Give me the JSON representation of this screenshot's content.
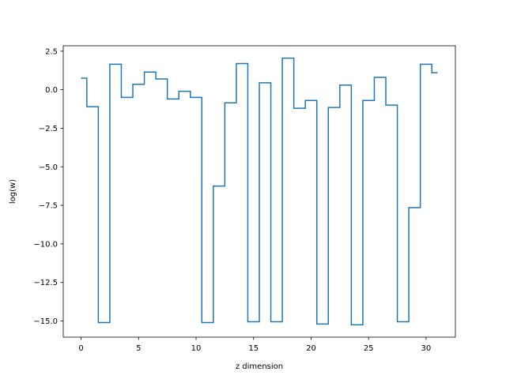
{
  "chart_data": {
    "type": "line",
    "drawstyle": "steps-mid",
    "title": "",
    "xlabel": "z dimension",
    "ylabel": "log(w)",
    "xlim": [
      -1.55,
      32.55
    ],
    "ylim": [
      -16.05,
      2.85
    ],
    "xticks": [
      0,
      5,
      10,
      15,
      20,
      25,
      30
    ],
    "xtick_labels": [
      "0",
      "5",
      "10",
      "15",
      "20",
      "25",
      "30"
    ],
    "yticks": [
      2.5,
      0.0,
      -2.5,
      -5.0,
      -7.5,
      -10.0,
      -12.5,
      -15.0
    ],
    "ytick_labels": [
      "2.5",
      "0.0",
      "−2.5",
      "−5.0",
      "−7.5",
      "−10.0",
      "−12.5",
      "−15.0"
    ],
    "grid": false,
    "series": [
      {
        "color": "#1f77b4",
        "x": [
          0,
          1,
          2,
          3,
          4,
          5,
          6,
          7,
          8,
          9,
          10,
          11,
          12,
          13,
          14,
          15,
          16,
          17,
          18,
          19,
          20,
          21,
          22,
          23,
          24,
          25,
          26,
          27,
          28,
          29,
          30,
          31
        ],
        "y": [
          0.75,
          -1.1,
          -15.1,
          1.65,
          -0.5,
          0.35,
          1.15,
          0.7,
          -0.6,
          -0.1,
          -0.5,
          -15.1,
          -6.25,
          -0.85,
          1.7,
          -15.05,
          0.45,
          -15.05,
          2.05,
          -1.2,
          -0.7,
          -15.2,
          -1.15,
          0.3,
          -15.25,
          -0.7,
          0.8,
          -1.0,
          -15.05,
          -7.65,
          1.65,
          1.1
        ]
      }
    ]
  }
}
